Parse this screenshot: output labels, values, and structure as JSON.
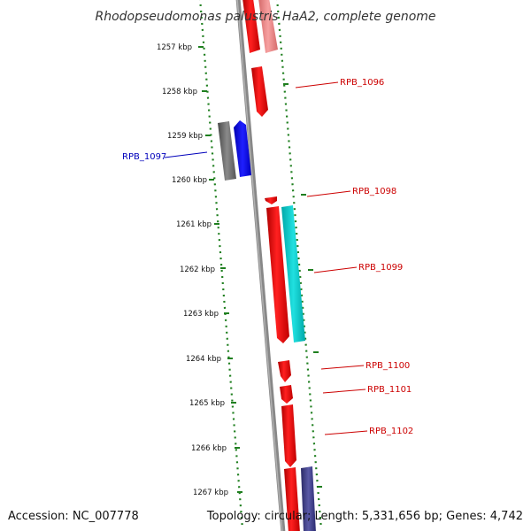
{
  "title": "Rhodopseudomonas palustris HaA2, complete genome",
  "accession": "Accession: NC_007778",
  "topology": "Topology: circular; Length: 5,331,656 bp; Genes: 4,742",
  "kbp_ticks": [
    "1257 kbp",
    "1258 kbp",
    "1259 kbp",
    "1260 kbp",
    "1261 kbp",
    "1262 kbp",
    "1263 kbp",
    "1264 kbp",
    "1265 kbp",
    "1266 kbp",
    "1267 kbp"
  ],
  "gene_labels": [
    {
      "name": "RPB_1096",
      "color": "#cc0000"
    },
    {
      "name": "RPB_1097",
      "color": "#0000bb"
    },
    {
      "name": "RPB_1098",
      "color": "#cc0000"
    },
    {
      "name": "RPB_1099",
      "color": "#cc0000"
    },
    {
      "name": "RPB_1100",
      "color": "#cc0000"
    },
    {
      "name": "RPB_1101",
      "color": "#cc0000"
    },
    {
      "name": "RPB_1102",
      "color": "#cc0000"
    }
  ],
  "colors": {
    "cds_forward": "#ff0000",
    "cds_faded": "#f08080",
    "rna": "#00cccc",
    "reverse_blue": "#0000ff",
    "grey": "#666666",
    "navy": "#3a3a80",
    "backbone": "#808080",
    "ring": "#1f7f1f"
  }
}
